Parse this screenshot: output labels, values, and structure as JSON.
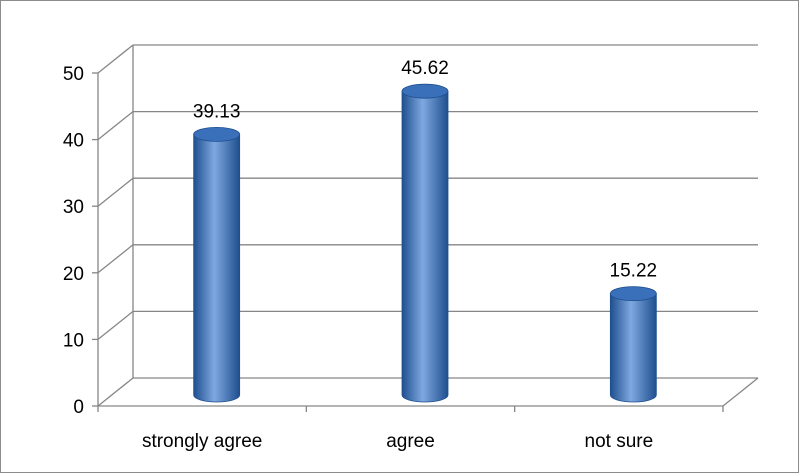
{
  "chart_data": {
    "type": "bar",
    "style": "3d-cylinder",
    "categories": [
      "strongly agree",
      "agree",
      "not sure"
    ],
    "values": [
      39.13,
      45.62,
      15.22
    ],
    "data_labels": [
      "39.13",
      "45.62",
      "15.22"
    ],
    "ylim": [
      0,
      50
    ],
    "yticks": [
      "0",
      "10",
      "20",
      "30",
      "40",
      "50"
    ],
    "grid": true,
    "legend": "none",
    "bar_color": "#3a6fba",
    "bar_color_dark": "#1f4f8f",
    "bar_color_light": "#7ea8e0",
    "grid_color": "#868686"
  }
}
